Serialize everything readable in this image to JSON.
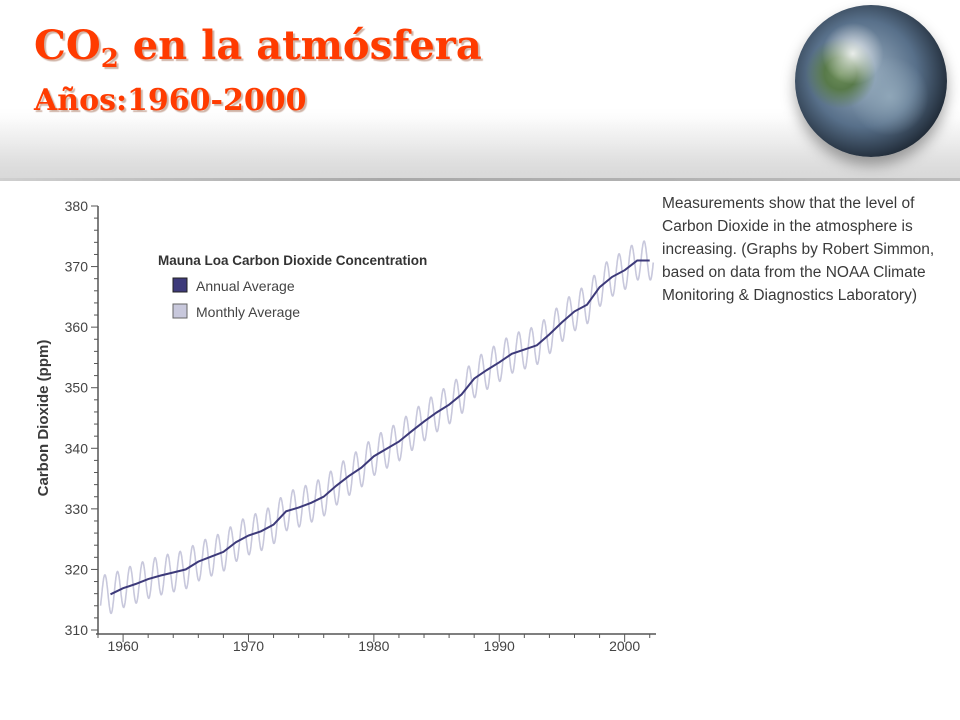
{
  "header": {
    "title_prefix": "CO",
    "title_sub": "2",
    "title_suffix": " en la atmósfera",
    "subtitle": "Años:1960-2000"
  },
  "note": "Measurements show that the level of Carbon Dioxide in the atmosphere is increasing. (Graphs by Robert Simmon, based on data from the NOAA Climate Monitoring & Diagnostics Laboratory)",
  "colors": {
    "title": "#ff3b00",
    "annual": "#3d3a7a",
    "monthly": "#c8c8dc",
    "axis": "#555555"
  },
  "chart_data": {
    "type": "line",
    "title": "Mauna Loa Carbon Dioxide Concentration",
    "ylabel": "Carbon Dioxide (ppm)",
    "xlabel": "",
    "xlim": [
      1958,
      2002.5
    ],
    "ylim": [
      310,
      380
    ],
    "x_ticks": [
      1960,
      1970,
      1980,
      1990,
      2000
    ],
    "y_ticks": [
      310,
      320,
      330,
      340,
      350,
      360,
      370,
      380
    ],
    "legend": {
      "placement": "top-left",
      "entries": [
        "Annual Average",
        "Monthly Average"
      ]
    },
    "grid": false,
    "series": [
      {
        "name": "Annual Average",
        "x": [
          1959,
          1960,
          1961,
          1962,
          1963,
          1964,
          1965,
          1966,
          1967,
          1968,
          1969,
          1970,
          1971,
          1972,
          1973,
          1974,
          1975,
          1976,
          1977,
          1978,
          1979,
          1980,
          1981,
          1982,
          1983,
          1984,
          1985,
          1986,
          1987,
          1988,
          1989,
          1990,
          1991,
          1992,
          1993,
          1994,
          1995,
          1996,
          1997,
          1998,
          1999,
          2000,
          2001,
          2002
        ],
        "values": [
          315.9,
          316.9,
          317.6,
          318.4,
          319.0,
          319.5,
          320.0,
          321.3,
          322.1,
          322.9,
          324.5,
          325.6,
          326.3,
          327.4,
          329.6,
          330.2,
          331.0,
          332.0,
          333.8,
          335.4,
          336.8,
          338.7,
          339.9,
          341.1,
          342.8,
          344.4,
          345.9,
          347.2,
          348.9,
          351.5,
          352.9,
          354.2,
          355.6,
          356.3,
          357.0,
          358.8,
          360.8,
          362.6,
          363.7,
          366.6,
          368.3,
          369.4,
          371.0,
          371.0
        ]
      },
      {
        "name": "Monthly Average",
        "seasonal_amplitude": 3.2,
        "note_values": "Monthly values oscillate around the annual average with a seasonal cycle"
      }
    ]
  }
}
